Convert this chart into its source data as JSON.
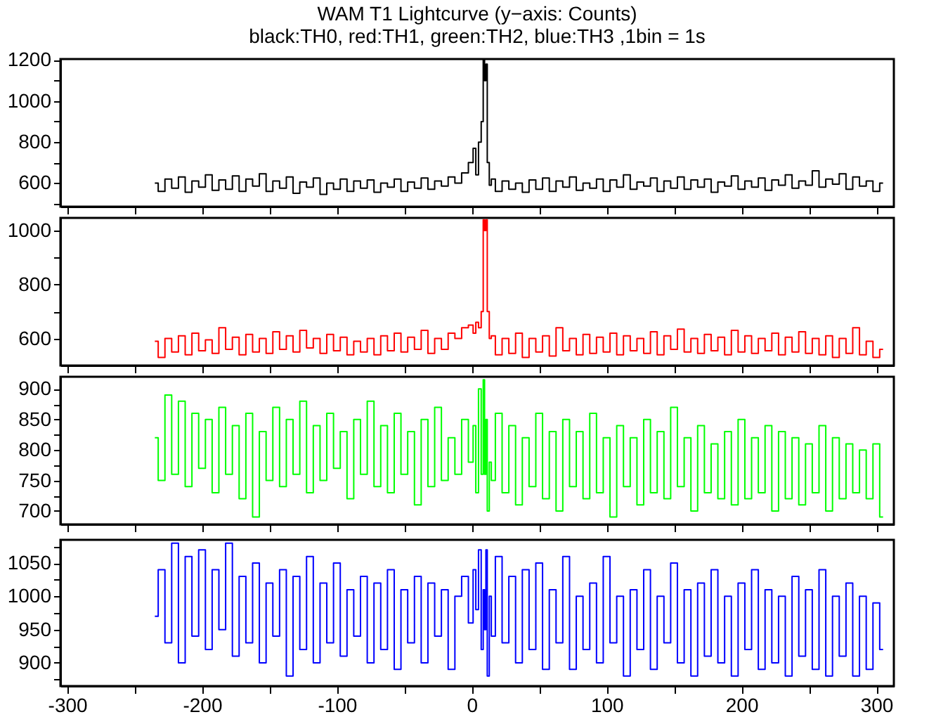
{
  "chart_data": [
    {
      "type": "step",
      "title": "WAM T1 Lightcurve (y−axis: Counts)",
      "subtitle": "black:TH0, red:TH1, green:TH2, blue:TH3 ,1bin = 1s",
      "tick_labels": "y",
      "grid": false,
      "x": [
        -235,
        -230,
        -225,
        -220,
        -215,
        -210,
        -205,
        -200,
        -195,
        -190,
        -185,
        -180,
        -175,
        -170,
        -165,
        -160,
        -155,
        -150,
        -145,
        -140,
        -135,
        -130,
        -125,
        -120,
        -115,
        -110,
        -105,
        -100,
        -95,
        -90,
        -85,
        -80,
        -75,
        -70,
        -65,
        -60,
        -55,
        -50,
        -45,
        -40,
        -35,
        -30,
        -25,
        -20,
        -15,
        -10,
        -5,
        0,
        2,
        4,
        6,
        8,
        9,
        10,
        11,
        12,
        14,
        15,
        20,
        25,
        30,
        35,
        40,
        45,
        50,
        55,
        60,
        65,
        70,
        75,
        80,
        85,
        90,
        95,
        100,
        105,
        110,
        115,
        120,
        125,
        130,
        135,
        140,
        145,
        150,
        155,
        160,
        165,
        170,
        175,
        180,
        185,
        190,
        195,
        200,
        205,
        210,
        215,
        220,
        225,
        230,
        235,
        240,
        245,
        250,
        255,
        260,
        265,
        270,
        275,
        280,
        285,
        290,
        295,
        300,
        305
      ],
      "xlim": [
        -305,
        313
      ],
      "xticks": [
        -300,
        {
          "value": -250,
          "label": null
        },
        -200,
        {
          "value": -150,
          "label": null
        },
        -100,
        {
          "value": -50,
          "label": null
        },
        0,
        {
          "value": 50,
          "label": null
        },
        100,
        {
          "value": 150,
          "label": null
        },
        200,
        {
          "value": 250,
          "label": null
        },
        300
      ],
      "ylim": [
        485,
        1205
      ],
      "yticks": [
        {
          "value": 500,
          "label": null
        },
        600,
        {
          "value": 700,
          "label": null
        },
        800,
        {
          "value": 900,
          "label": null
        },
        1000,
        {
          "value": 1100,
          "label": null
        },
        1200
      ],
      "series": [
        {
          "color": "#000000",
          "values": [
            600,
            560,
            620,
            575,
            630,
            555,
            610,
            580,
            640,
            565,
            615,
            570,
            635,
            560,
            620,
            585,
            645,
            560,
            610,
            575,
            630,
            550,
            605,
            580,
            625,
            545,
            600,
            570,
            620,
            560,
            610,
            575,
            615,
            555,
            600,
            580,
            620,
            560,
            605,
            575,
            625,
            570,
            610,
            585,
            630,
            600,
            650,
            700,
            770,
            640,
            800,
            900,
            1200,
            1100,
            1180,
            700,
            590,
            620,
            560,
            610,
            570,
            600,
            555,
            615,
            570,
            625,
            560,
            610,
            580,
            630,
            565,
            600,
            575,
            620,
            560,
            615,
            580,
            640,
            570,
            605,
            585,
            625,
            560,
            610,
            575,
            630,
            570,
            615,
            580,
            620,
            555,
            605,
            585,
            635,
            570,
            610,
            580,
            625,
            565,
            615,
            590,
            640,
            575,
            610,
            590,
            660,
            580,
            620,
            595,
            645,
            570,
            630,
            585,
            610,
            560,
            600
          ]
        }
      ]
    },
    {
      "type": "step",
      "tick_labels": "y",
      "grid": false,
      "x": [
        -235,
        -230,
        -225,
        -220,
        -215,
        -210,
        -205,
        -200,
        -195,
        -190,
        -185,
        -180,
        -175,
        -170,
        -165,
        -160,
        -155,
        -150,
        -145,
        -140,
        -135,
        -130,
        -125,
        -120,
        -115,
        -110,
        -105,
        -100,
        -95,
        -90,
        -85,
        -80,
        -75,
        -70,
        -65,
        -60,
        -55,
        -50,
        -45,
        -40,
        -35,
        -30,
        -25,
        -20,
        -15,
        -10,
        -5,
        0,
        2,
        4,
        6,
        8,
        9,
        10,
        11,
        12,
        14,
        15,
        20,
        25,
        30,
        35,
        40,
        45,
        50,
        55,
        60,
        65,
        70,
        75,
        80,
        85,
        90,
        95,
        100,
        105,
        110,
        115,
        120,
        125,
        130,
        135,
        140,
        145,
        150,
        155,
        160,
        165,
        170,
        175,
        180,
        185,
        190,
        195,
        200,
        205,
        210,
        215,
        220,
        225,
        230,
        235,
        240,
        245,
        250,
        255,
        260,
        265,
        270,
        275,
        280,
        285,
        290,
        295,
        300,
        305
      ],
      "xlim": [
        -305,
        313
      ],
      "xticks": [
        -300,
        {
          "value": -250,
          "label": null
        },
        -200,
        {
          "value": -150,
          "label": null
        },
        -100,
        {
          "value": -50,
          "label": null
        },
        0,
        {
          "value": 50,
          "label": null
        },
        100,
        {
          "value": 150,
          "label": null
        },
        200,
        {
          "value": 250,
          "label": null
        },
        300
      ],
      "ylim": [
        500,
        1047
      ],
      "yticks": [
        600,
        {
          "value": 700,
          "label": null
        },
        800,
        {
          "value": 900,
          "label": null
        },
        1000
      ],
      "series": [
        {
          "color": "#ff0000",
          "values": [
            590,
            530,
            600,
            550,
            610,
            540,
            620,
            555,
            595,
            545,
            640,
            560,
            605,
            540,
            615,
            550,
            600,
            545,
            625,
            560,
            610,
            550,
            630,
            565,
            600,
            545,
            615,
            555,
            605,
            540,
            590,
            550,
            600,
            540,
            610,
            555,
            620,
            550,
            605,
            560,
            630,
            545,
            600,
            560,
            620,
            600,
            640,
            650,
            620,
            660,
            640,
            700,
            1040,
            1000,
            1040,
            700,
            600,
            610,
            540,
            600,
            545,
            620,
            530,
            600,
            550,
            610,
            535,
            640,
            555,
            600,
            540,
            615,
            545,
            605,
            550,
            620,
            540,
            610,
            555,
            600,
            545,
            625,
            540,
            610,
            560,
            635,
            550,
            600,
            545,
            615,
            555,
            605,
            540,
            630,
            550,
            610,
            545,
            600,
            555,
            620,
            540,
            605,
            550,
            625,
            545,
            600,
            540,
            610,
            530,
            600,
            545,
            640,
            540,
            590,
            530,
            560
          ]
        }
      ]
    },
    {
      "type": "step",
      "tick_labels": "y",
      "grid": false,
      "x": [
        -235,
        -230,
        -225,
        -220,
        -215,
        -210,
        -205,
        -200,
        -195,
        -190,
        -185,
        -180,
        -175,
        -170,
        -165,
        -160,
        -155,
        -150,
        -145,
        -140,
        -135,
        -130,
        -125,
        -120,
        -115,
        -110,
        -105,
        -100,
        -95,
        -90,
        -85,
        -80,
        -75,
        -70,
        -65,
        -60,
        -55,
        -50,
        -45,
        -40,
        -35,
        -30,
        -25,
        -20,
        -15,
        -10,
        -5,
        0,
        2,
        4,
        6,
        8,
        9,
        10,
        11,
        12,
        14,
        15,
        20,
        25,
        30,
        35,
        40,
        45,
        50,
        55,
        60,
        65,
        70,
        75,
        80,
        85,
        90,
        95,
        100,
        105,
        110,
        115,
        120,
        125,
        130,
        135,
        140,
        145,
        150,
        155,
        160,
        165,
        170,
        175,
        180,
        185,
        190,
        195,
        200,
        205,
        210,
        215,
        220,
        225,
        230,
        235,
        240,
        245,
        250,
        255,
        260,
        265,
        270,
        275,
        280,
        285,
        290,
        295,
        300,
        305
      ],
      "xlim": [
        -305,
        313
      ],
      "xticks": [
        -300,
        {
          "value": -250,
          "label": null
        },
        -200,
        {
          "value": -150,
          "label": null
        },
        -100,
        {
          "value": -50,
          "label": null
        },
        0,
        {
          "value": 50,
          "label": null
        },
        100,
        {
          "value": 150,
          "label": null
        },
        200,
        {
          "value": 250,
          "label": null
        },
        300
      ],
      "ylim": [
        678,
        920
      ],
      "yticks": [
        700,
        {
          "value": 725,
          "label": null
        },
        750,
        {
          "value": 775,
          "label": null
        },
        800,
        {
          "value": 825,
          "label": null
        },
        850,
        {
          "value": 875,
          "label": null
        },
        900
      ],
      "series": [
        {
          "color": "#00ff00",
          "values": [
            820,
            750,
            890,
            760,
            880,
            740,
            860,
            770,
            850,
            730,
            870,
            760,
            840,
            720,
            860,
            690,
            830,
            750,
            870,
            740,
            850,
            760,
            880,
            730,
            840,
            750,
            860,
            770,
            830,
            720,
            850,
            760,
            880,
            740,
            840,
            730,
            860,
            760,
            830,
            710,
            850,
            740,
            870,
            750,
            820,
            760,
            850,
            780,
            840,
            730,
            900,
            760,
            915,
            760,
            850,
            700,
            780,
            750,
            860,
            730,
            840,
            710,
            820,
            740,
            860,
            720,
            830,
            700,
            850,
            740,
            830,
            720,
            860,
            730,
            820,
            690,
            840,
            740,
            820,
            710,
            850,
            730,
            830,
            720,
            870,
            740,
            820,
            700,
            840,
            730,
            810,
            720,
            830,
            710,
            850,
            720,
            820,
            730,
            840,
            700,
            830,
            720,
            820,
            710,
            810,
            730,
            840,
            700,
            820,
            720,
            810,
            730,
            800,
            720,
            810,
            690
          ]
        }
      ]
    },
    {
      "type": "step",
      "grid": false,
      "x": [
        -235,
        -230,
        -225,
        -220,
        -215,
        -210,
        -205,
        -200,
        -195,
        -190,
        -185,
        -180,
        -175,
        -170,
        -165,
        -160,
        -155,
        -150,
        -145,
        -140,
        -135,
        -130,
        -125,
        -120,
        -115,
        -110,
        -105,
        -100,
        -95,
        -90,
        -85,
        -80,
        -75,
        -70,
        -65,
        -60,
        -55,
        -50,
        -45,
        -40,
        -35,
        -30,
        -25,
        -20,
        -15,
        -10,
        -5,
        0,
        2,
        4,
        6,
        8,
        9,
        10,
        11,
        12,
        14,
        15,
        20,
        25,
        30,
        35,
        40,
        45,
        50,
        55,
        60,
        65,
        70,
        75,
        80,
        85,
        90,
        95,
        100,
        105,
        110,
        115,
        120,
        125,
        130,
        135,
        140,
        145,
        150,
        155,
        160,
        165,
        170,
        175,
        180,
        185,
        190,
        195,
        200,
        205,
        210,
        215,
        220,
        225,
        230,
        235,
        240,
        245,
        250,
        255,
        260,
        265,
        270,
        275,
        280,
        285,
        290,
        295,
        300,
        305
      ],
      "xlim": [
        -305,
        313
      ],
      "xticks": [
        -300,
        {
          "value": -250,
          "label": null
        },
        -200,
        {
          "value": -150,
          "label": null
        },
        -100,
        {
          "value": -50,
          "label": null
        },
        0,
        {
          "value": 50,
          "label": null
        },
        100,
        {
          "value": 150,
          "label": null
        },
        200,
        {
          "value": 250,
          "label": null
        },
        300
      ],
      "ylim": [
        865,
        1085
      ],
      "yticks": [
        {
          "value": 875,
          "label": null
        },
        900,
        {
          "value": 925,
          "label": null
        },
        950,
        {
          "value": 975,
          "label": null
        },
        1000,
        {
          "value": 1025,
          "label": null
        },
        1050,
        {
          "value": 1075,
          "label": null
        }
      ],
      "series": [
        {
          "color": "#0000ff",
          "values": [
            970,
            1040,
            930,
            1080,
            900,
            1060,
            940,
            1070,
            920,
            1040,
            950,
            1080,
            910,
            1030,
            930,
            1050,
            900,
            1020,
            940,
            1040,
            880,
            1030,
            920,
            1060,
            900,
            1020,
            930,
            1050,
            910,
            1010,
            940,
            1030,
            900,
            1020,
            920,
            1040,
            890,
            1010,
            930,
            1030,
            900,
            1020,
            940,
            1010,
            890,
            1000,
            1030,
            960,
            1040,
            980,
            1070,
            920,
            1010,
            950,
            1070,
            880,
            1000,
            940,
            1060,
            930,
            1030,
            900,
            1040,
            920,
            1050,
            890,
            1010,
            930,
            1060,
            890,
            1000,
            920,
            1020,
            900,
            1060,
            930,
            1000,
            880,
            1010,
            920,
            1040,
            890,
            1000,
            930,
            1050,
            900,
            1010,
            880,
            1020,
            910,
            1040,
            900,
            1000,
            880,
            1020,
            920,
            1040,
            890,
            1010,
            900,
            1000,
            880,
            1030,
            910,
            1010,
            890,
            1040,
            880,
            1000,
            910,
            1020,
            880,
            1000,
            890,
            990,
            920
          ]
        }
      ]
    }
  ]
}
